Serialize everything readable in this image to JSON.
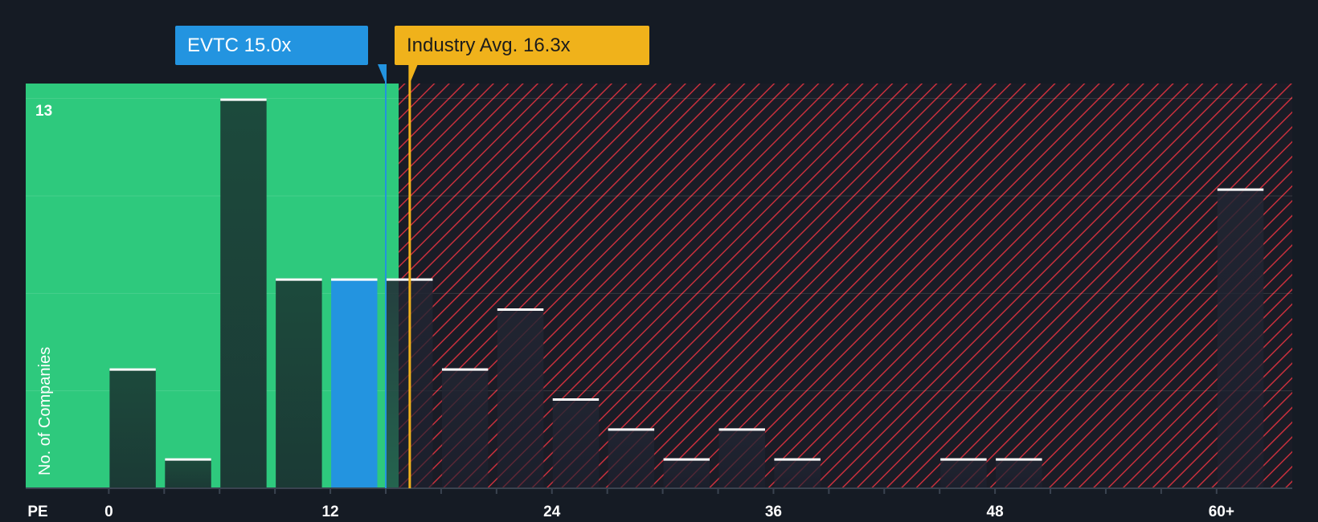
{
  "chart_data": {
    "type": "bar",
    "x_axis_label": "PE",
    "y_axis_label": "No. of Companies",
    "y_max_label": "13",
    "ylim": [
      0,
      13.5
    ],
    "bin_width": 2.5,
    "xlim": [
      -4.5,
      64.1
    ],
    "x_ticks": [
      {
        "value": 0,
        "label": "0"
      },
      {
        "value": 12,
        "label": "12"
      },
      {
        "value": 24,
        "label": "24"
      },
      {
        "value": 36,
        "label": "36"
      },
      {
        "value": 48,
        "label": "48"
      },
      {
        "value": 60,
        "label": "60+"
      }
    ],
    "bins": [
      {
        "start": 0,
        "value": 4
      },
      {
        "start": 3,
        "value": 1
      },
      {
        "start": 6,
        "value": 13
      },
      {
        "start": 9,
        "value": 7
      },
      {
        "start": 12,
        "value": 7,
        "highlight": true
      },
      {
        "start": 15,
        "value": 7
      },
      {
        "start": 18,
        "value": 4
      },
      {
        "start": 21,
        "value": 6
      },
      {
        "start": 24,
        "value": 3
      },
      {
        "start": 27,
        "value": 2
      },
      {
        "start": 30,
        "value": 1
      },
      {
        "start": 33,
        "value": 2
      },
      {
        "start": 36,
        "value": 1
      },
      {
        "start": 45,
        "value": 1
      },
      {
        "start": 48,
        "value": 1
      },
      {
        "start": 60,
        "value": 10
      }
    ],
    "fair_value_boundary": 15.7,
    "company": {
      "name": "EVTC",
      "value": 15.0,
      "label": "EVTC 15.0x",
      "color": "#2394e0"
    },
    "industry_average": {
      "value": 16.3,
      "label": "Industry Avg. 16.3x",
      "color": "#f0b21b"
    },
    "colors": {
      "background": "#151b24",
      "undervalued_zone": "#2ec97d",
      "overvalued_zone": "#e03c4a",
      "bar_dark": "#1e4a3c",
      "bar_cap": "#ffffff"
    }
  }
}
